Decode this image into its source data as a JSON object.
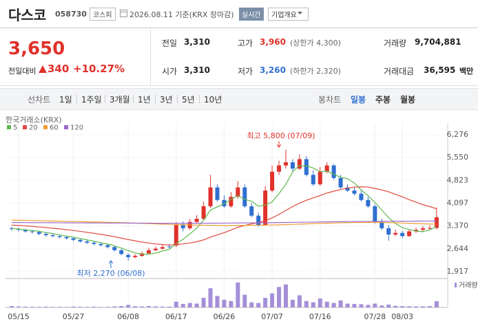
{
  "header": {
    "name": "다스코",
    "code": "058730",
    "market": "코스피",
    "date": "2026.08.11 기준(KRX 장마감)",
    "realtime": "실시간",
    "overview": "기업개요"
  },
  "quote": {
    "price": "3,650",
    "change_label": "전일대비",
    "change": "340",
    "change_rate": "+10.27%"
  },
  "stats": [
    {
      "label": "전일",
      "value": "3,310"
    },
    {
      "label": "고가",
      "value": "3,960",
      "note": "(상한가 4,300)"
    },
    {
      "label": "거래량",
      "value": "9,704,881"
    },
    {
      "label": "시가",
      "value": "3,310"
    },
    {
      "label": "저가",
      "value": "3,260",
      "note": "(하한가 2,320)"
    },
    {
      "label": "거래대금",
      "value": "36,595",
      "note": "백만"
    }
  ],
  "tabs": {
    "line_chart": "선차트",
    "periods": [
      "1일",
      "1주일",
      "3개월",
      "1년",
      "3년",
      "5년",
      "10년"
    ],
    "candle_chart": "봉차트",
    "candle_periods": [
      "일봉",
      "주봉",
      "월봉"
    ]
  },
  "chart_data": {
    "type": "candlestick",
    "source": "한국거래소(KRX)",
    "volume_label": "거래량",
    "up_color": "#e0312b",
    "down_color": "#2f6fd0",
    "volume_color": "#a48fd8",
    "annotations": [
      "최고 5,800 (07/09)",
      "최저 2,270 (06/08)"
    ],
    "categories": [
      null,
      "05/15",
      null,
      null,
      null,
      null,
      null,
      null,
      null,
      "05/27",
      null,
      null,
      null,
      null,
      null,
      null,
      null,
      "06/08",
      null,
      null,
      null,
      null,
      null,
      null,
      "06/17",
      null,
      null,
      null,
      null,
      null,
      null,
      "06/26",
      null,
      null,
      null,
      null,
      null,
      null,
      "07/07",
      null,
      null,
      null,
      null,
      null,
      null,
      "07/16",
      null,
      null,
      null,
      null,
      null,
      null,
      null,
      "07/28",
      null,
      null,
      null,
      "08/03",
      null,
      null,
      null,
      null,
      null
    ],
    "open": [
      3300,
      3280,
      3240,
      3200,
      3180,
      3120,
      3080,
      3050,
      3020,
      2980,
      2930,
      2880,
      2840,
      2800,
      2760,
      2700,
      2600,
      2450,
      2380,
      2420,
      2500,
      2600,
      2650,
      2720,
      2750,
      3400,
      3300,
      3500,
      3600,
      4000,
      4600,
      4200,
      4000,
      4300,
      4600,
      4000,
      3700,
      3400,
      4500,
      5100,
      5300,
      5400,
      5200,
      5500,
      5000,
      4700,
      5100,
      5300,
      4900,
      4600,
      4500,
      4400,
      4200,
      4000,
      3500,
      3300,
      3100,
      3150,
      3050,
      3200,
      3250,
      3300,
      3310
    ],
    "high": [
      3350,
      3320,
      3280,
      3250,
      3220,
      3160,
      3120,
      3090,
      3060,
      3010,
      2960,
      2920,
      2870,
      2830,
      2800,
      2740,
      2640,
      2500,
      2480,
      2560,
      2680,
      2720,
      2780,
      2800,
      3500,
      3520,
      3600,
      3720,
      4150,
      5000,
      4700,
      4350,
      4450,
      4800,
      4700,
      4100,
      3800,
      4650,
      5300,
      5450,
      5800,
      5500,
      5650,
      5600,
      5150,
      5250,
      5400,
      5350,
      5000,
      4700,
      4600,
      4500,
      4300,
      4050,
      3600,
      3400,
      3250,
      3220,
      3260,
      3320,
      3380,
      3400,
      3960
    ],
    "low": [
      3220,
      3200,
      3160,
      3130,
      3080,
      3040,
      3010,
      2980,
      2940,
      2890,
      2840,
      2800,
      2760,
      2720,
      2660,
      2560,
      2440,
      2270,
      2340,
      2390,
      2470,
      2570,
      2620,
      2660,
      2700,
      3200,
      3250,
      3450,
      3550,
      3950,
      4150,
      3950,
      3950,
      4250,
      3950,
      3650,
      3350,
      3380,
      4450,
      5000,
      5200,
      5100,
      5150,
      4950,
      4650,
      4650,
      5050,
      4850,
      4550,
      4450,
      4350,
      4150,
      3950,
      3450,
      3250,
      2900,
      3050,
      2980,
      3020,
      3150,
      3200,
      3250,
      3260
    ],
    "close": [
      3275,
      3250,
      3200,
      3180,
      3120,
      3080,
      3050,
      3020,
      2980,
      2930,
      2880,
      2840,
      2800,
      2760,
      2700,
      2600,
      2480,
      2380,
      2420,
      2500,
      2600,
      2650,
      2700,
      2700,
      3400,
      3300,
      3500,
      3600,
      4000,
      4600,
      4200,
      4000,
      4300,
      4600,
      4000,
      3700,
      3400,
      4500,
      5100,
      5300,
      5400,
      5200,
      5500,
      5000,
      4700,
      5100,
      5300,
      4900,
      4600,
      4500,
      4400,
      4200,
      4000,
      3500,
      3300,
      3100,
      3150,
      3050,
      3200,
      3250,
      3300,
      3310,
      3650
    ],
    "volume": [
      2100000,
      1500000,
      1200000,
      1000000,
      900000,
      1100000,
      800000,
      900000,
      700000,
      1300000,
      1000000,
      800000,
      1200000,
      700000,
      900000,
      1500000,
      2200000,
      4000000,
      1800000,
      1500000,
      2100000,
      1600000,
      1300000,
      1200000,
      9000000,
      5500000,
      7000000,
      6000000,
      15000000,
      30000000,
      18000000,
      12000000,
      10000000,
      39000000,
      20000000,
      8000000,
      7000000,
      15000000,
      22000000,
      32000000,
      36000000,
      12000000,
      19000000,
      10000000,
      8000000,
      14000000,
      9000000,
      7000000,
      11000000,
      6000000,
      5500000,
      5000000,
      4000000,
      6000000,
      3000000,
      4500000,
      2500000,
      2000000,
      1800000,
      1500000,
      1700000,
      2000000,
      9704881
    ],
    "volume_ylim": [
      0,
      42000000
    ],
    "moving_averages": [
      {
        "name": "5",
        "color": "#5db84a",
        "values": [
          3290,
          3275,
          3250,
          3225,
          3205,
          3165,
          3130,
          3090,
          3050,
          3012,
          2972,
          2930,
          2886,
          2842,
          2796,
          2740,
          2668,
          2588,
          2518,
          2476,
          2476,
          2510,
          2574,
          2630,
          2810,
          2950,
          3120,
          3300,
          3560,
          3880,
          3980,
          4080,
          4220,
          4340,
          4220,
          4160,
          4000,
          4040,
          4140,
          4400,
          4700,
          5100,
          5300,
          5280,
          5220,
          5100,
          5120,
          5020,
          4920,
          4880,
          4740,
          4520,
          4340,
          4120,
          3880,
          3640,
          3450,
          3320,
          3260,
          3210,
          3190,
          3250,
          3352
        ]
      },
      {
        "name": "20",
        "color": "#e2483d",
        "values": [
          3400,
          3390,
          3375,
          3360,
          3340,
          3320,
          3300,
          3280,
          3255,
          3230,
          3200,
          3170,
          3140,
          3105,
          3070,
          3030,
          2985,
          2940,
          2900,
          2860,
          2830,
          2800,
          2780,
          2765,
          2780,
          2800,
          2830,
          2870,
          2930,
          3020,
          3090,
          3160,
          3240,
          3330,
          3390,
          3440,
          3480,
          3540,
          3630,
          3740,
          3870,
          3990,
          4100,
          4190,
          4270,
          4340,
          4420,
          4480,
          4530,
          4580,
          4610,
          4620,
          4610,
          4570,
          4520,
          4460,
          4380,
          4300,
          4210,
          4130,
          4050,
          3990,
          3920
        ]
      },
      {
        "name": "60",
        "color": "#f39c33",
        "values": [
          3560,
          3555,
          3550,
          3545,
          3540,
          3535,
          3530,
          3525,
          3520,
          3515,
          3510,
          3505,
          3500,
          3495,
          3490,
          3485,
          3478,
          3470,
          3462,
          3455,
          3448,
          3440,
          3432,
          3425,
          3418,
          3412,
          3406,
          3400,
          3395,
          3392,
          3390,
          3388,
          3388,
          3390,
          3392,
          3394,
          3396,
          3400,
          3405,
          3410,
          3418,
          3425,
          3432,
          3440,
          3448,
          3455,
          3462,
          3468,
          3474,
          3478,
          3482,
          3484,
          3486,
          3486,
          3484,
          3480,
          3474,
          3466,
          3458,
          3450,
          3442,
          3436,
          3430
        ]
      },
      {
        "name": "120",
        "color": "#9b6bcc",
        "values": [
          3480,
          3480,
          3479,
          3478,
          3477,
          3476,
          3475,
          3474,
          3473,
          3472,
          3471,
          3470,
          3469,
          3468,
          3467,
          3466,
          3465,
          3464,
          3463,
          3462,
          3461,
          3460,
          3459,
          3458,
          3458,
          3458,
          3458,
          3459,
          3460,
          3461,
          3462,
          3463,
          3465,
          3467,
          3469,
          3471,
          3473,
          3475,
          3478,
          3481,
          3484,
          3487,
          3490,
          3493,
          3496,
          3499,
          3502,
          3505,
          3508,
          3511,
          3514,
          3516,
          3518,
          3520,
          3522,
          3523,
          3524,
          3525,
          3526,
          3527,
          3528,
          3529,
          3530
        ]
      }
    ],
    "ylim": [
      1742,
      6517
    ],
    "yticks": [
      {
        "value": 6276,
        "label": "6,276"
      },
      {
        "value": 5550,
        "label": "5,550"
      },
      {
        "value": 4823,
        "label": "4,823"
      },
      {
        "value": 4097,
        "label": "4,097"
      },
      {
        "value": 3370,
        "label": "3,370"
      },
      {
        "value": 2644,
        "label": "2,644"
      },
      {
        "value": 1917,
        "label": "1,917"
      }
    ],
    "grid": true
  }
}
